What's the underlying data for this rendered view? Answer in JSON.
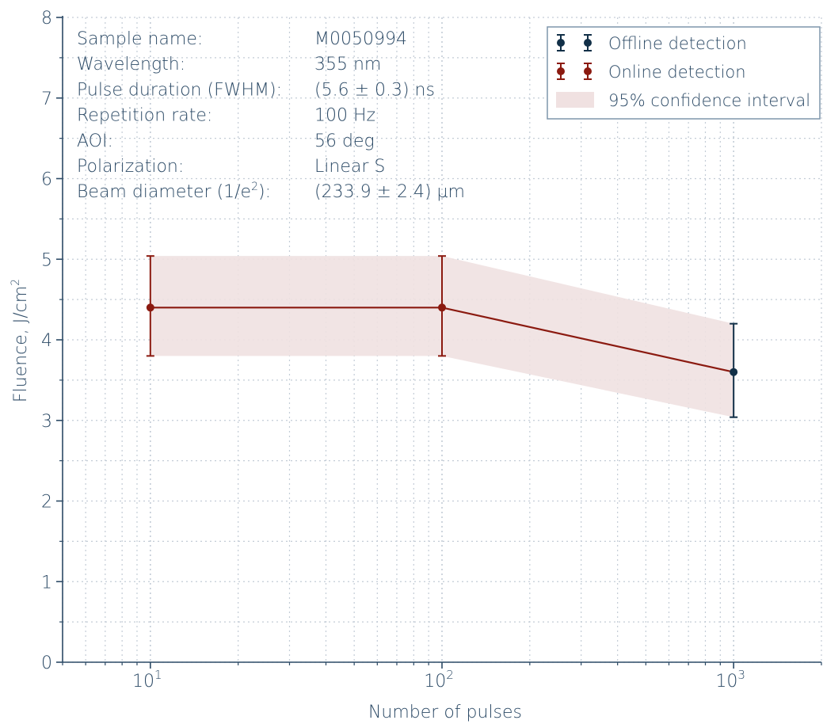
{
  "colors": {
    "axis": "#2c4a66",
    "grid": "#c3ccd6",
    "offline": "#123048",
    "online": "#8b1a10",
    "band": "#f0e1e1"
  },
  "info": {
    "rows": [
      {
        "label": "Sample name:",
        "value": "M0050994"
      },
      {
        "label": "Wavelength:",
        "value": "355 nm"
      },
      {
        "label": "Pulse duration (FWHM):",
        "value": "(5.6 ± 0.3) ns"
      },
      {
        "label": "Repetition rate:",
        "value": "100 Hz"
      },
      {
        "label": "AOI:",
        "value": "56 deg"
      },
      {
        "label": "Polarization:",
        "value": "Linear S"
      }
    ],
    "beam": {
      "label_prefix": "Beam diameter (1/e",
      "label_sup": "2",
      "label_suffix": "):",
      "value": "(233.9 ± 2.4) µm"
    }
  },
  "legend": {
    "offline": "Offline detection",
    "online": "Online detection",
    "band": "95% confidence interval"
  },
  "chart_data": {
    "type": "line",
    "xscale": "log",
    "xlim": [
      5,
      2000
    ],
    "ylim": [
      0,
      8
    ],
    "grid": true,
    "legend_position": "top-right",
    "xlabel": "Number of pulses",
    "ylabel_text": "Fluence, J/cm",
    "ylabel_sup": "2",
    "yticks": [
      0,
      1,
      2,
      3,
      4,
      5,
      6,
      7,
      8
    ],
    "xticks": [
      {
        "value": 10,
        "base": "10",
        "exp": "1"
      },
      {
        "value": 100,
        "base": "10",
        "exp": "2"
      },
      {
        "value": 1000,
        "base": "10",
        "exp": "3"
      }
    ],
    "series": [
      {
        "name": "Online detection",
        "points": [
          {
            "x": 10,
            "y": 4.4,
            "low": 3.8,
            "high": 5.04
          },
          {
            "x": 100,
            "y": 4.4,
            "low": 3.8,
            "high": 5.04
          }
        ]
      },
      {
        "name": "Offline detection",
        "points": [
          {
            "x": 1000,
            "y": 3.6,
            "low": 3.04,
            "high": 4.2
          }
        ]
      }
    ],
    "fit_line": [
      {
        "x": 10,
        "y": 4.4
      },
      {
        "x": 100,
        "y": 4.4
      },
      {
        "x": 1000,
        "y": 3.6
      }
    ],
    "confidence_band": [
      {
        "x": 10,
        "low": 3.8,
        "high": 5.04
      },
      {
        "x": 100,
        "low": 3.8,
        "high": 5.04
      },
      {
        "x": 1000,
        "low": 3.04,
        "high": 4.2
      }
    ]
  }
}
